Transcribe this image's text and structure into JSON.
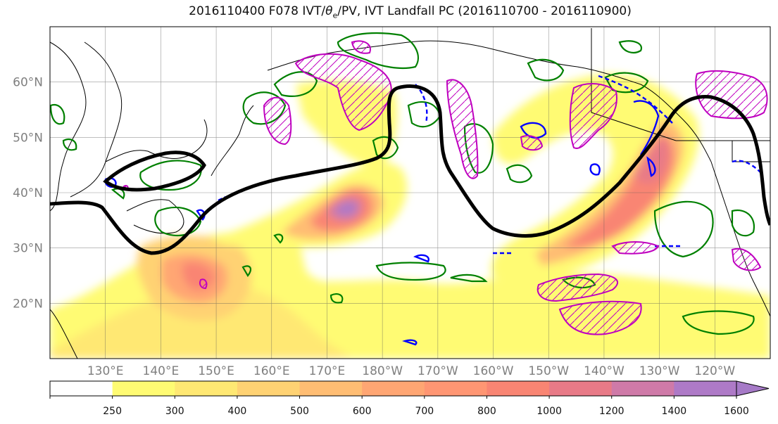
{
  "figure": {
    "title_main": "2016110400 F078 IVT/",
    "title_theta": "θ",
    "title_sub": "e",
    "title_rest": "/PV, IVT Landfall PC (2016110700 - 2016110900)"
  },
  "map": {
    "lon_range": [
      120,
      250
    ],
    "lat_range": [
      10,
      70
    ],
    "lat_ticks": [
      {
        "value": 20,
        "label": "20°N"
      },
      {
        "value": 30,
        "label": "30°N"
      },
      {
        "value": 40,
        "label": "40°N"
      },
      {
        "value": 50,
        "label": "50°N"
      },
      {
        "value": 60,
        "label": "60°N"
      }
    ],
    "lon_ticks": [
      {
        "value": 130,
        "label": "130°E"
      },
      {
        "value": 140,
        "label": "140°E"
      },
      {
        "value": 150,
        "label": "150°E"
      },
      {
        "value": 160,
        "label": "160°E"
      },
      {
        "value": 170,
        "label": "170°E"
      },
      {
        "value": 180,
        "label": "180°W"
      },
      {
        "value": 190,
        "label": "170°W"
      },
      {
        "value": 200,
        "label": "160°W"
      },
      {
        "value": 210,
        "label": "150°W"
      },
      {
        "value": 220,
        "label": "140°W"
      },
      {
        "value": 230,
        "label": "130°W"
      },
      {
        "value": 240,
        "label": "120°W"
      }
    ],
    "gridlines": true
  },
  "colorbar": {
    "levels": [
      250,
      300,
      400,
      500,
      600,
      700,
      800,
      1000,
      1200,
      1400,
      1600
    ],
    "colors": [
      "#ffffff",
      "#fffb73",
      "#ffe873",
      "#ffd273",
      "#ffbd73",
      "#ffa673",
      "#ff9673",
      "#f98573",
      "#e87a87",
      "#cf7aa8",
      "#ae7ac7"
    ],
    "extend_color": "#a67ac7"
  },
  "colors": {
    "ivt_black": "#000000",
    "pv_green": "#008000",
    "theta_blue": "#0000ff",
    "magenta": "#bf00bf"
  }
}
